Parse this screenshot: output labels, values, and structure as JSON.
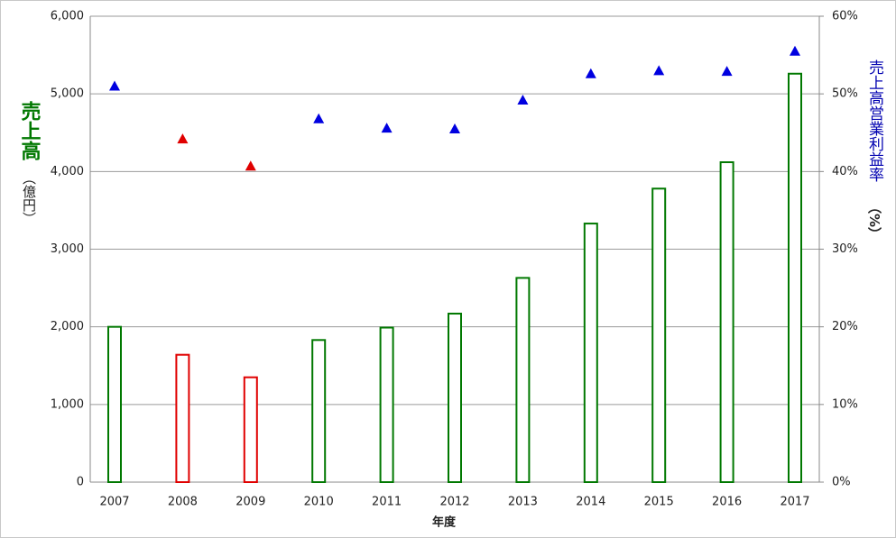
{
  "chart_data": {
    "type": "bar-scatter",
    "x_label": "年度",
    "y_label": "売上高",
    "y_label_unit": "（億円）",
    "y2_label": "売上高営業利益率",
    "y2_label_unit": "（%）",
    "categories": [
      "2007",
      "2008",
      "2009",
      "2010",
      "2011",
      "2012",
      "2013",
      "2014",
      "2015",
      "2016",
      "2017"
    ],
    "series": [
      {
        "type": "bar",
        "values": [
          2000,
          1640,
          1350,
          1830,
          1990,
          2170,
          2630,
          3330,
          3780,
          4120,
          5260
        ],
        "colors": [
          "#007800",
          "#e00000",
          "#e00000",
          "#007800",
          "#007800",
          "#007800",
          "#007800",
          "#007800",
          "#007800",
          "#007800",
          "#007800"
        ]
      },
      {
        "type": "scatter",
        "axis": "y2",
        "values": [
          51,
          44.2,
          40.7,
          46.8,
          45.6,
          45.5,
          49.2,
          52.6,
          53,
          52.9,
          55.5
        ],
        "colors": [
          "#0000e0",
          "#e00000",
          "#e00000",
          "#0000e0",
          "#0000e0",
          "#0000e0",
          "#0000e0",
          "#0000e0",
          "#0000e0",
          "#0000e0",
          "#0000e0"
        ]
      }
    ],
    "ylim": [
      0,
      6000
    ],
    "yticks": [
      {
        "value": 0,
        "label": "0"
      },
      {
        "value": 1000,
        "label": "1,000"
      },
      {
        "value": 2000,
        "label": "2,000"
      },
      {
        "value": 3000,
        "label": "3,000"
      },
      {
        "value": 4000,
        "label": "4,000"
      },
      {
        "value": 5000,
        "label": "5,000"
      },
      {
        "value": 6000,
        "label": "6,000"
      }
    ],
    "y2lim": [
      0,
      60
    ],
    "y2ticks": [
      {
        "value": 0,
        "label": "0%"
      },
      {
        "value": 10,
        "label": "10%"
      },
      {
        "value": 20,
        "label": "20%"
      },
      {
        "value": 30,
        "label": "30%"
      },
      {
        "value": 40,
        "label": "40%"
      },
      {
        "value": 50,
        "label": "50%"
      },
      {
        "value": 60,
        "label": "60%"
      }
    ],
    "grid": true
  }
}
